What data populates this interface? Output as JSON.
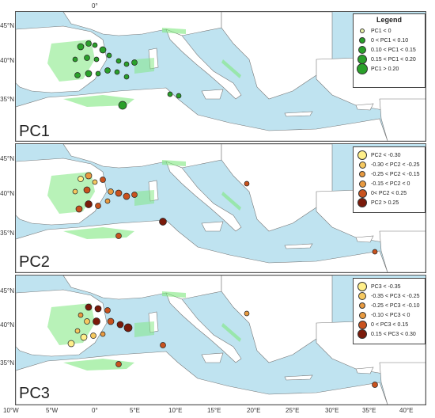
{
  "panels": [
    {
      "label": "PC1",
      "legend": {
        "title": "Legend",
        "entries": [
          {
            "text": "PC1 < 0",
            "color": "#e8f0a8",
            "size": 4
          },
          {
            "text": "0 < PC1 < 0.10",
            "color": "#2aa02a",
            "size": 6
          },
          {
            "text": "0.10 < PC1 < 0.15",
            "color": "#2aa02a",
            "size": 8
          },
          {
            "text": "0.15 < PC1 < 0.20",
            "color": "#2aa02a",
            "size": 10
          },
          {
            "text": "PC1 > 0.20",
            "color": "#2aa02a",
            "size": 12
          }
        ]
      }
    },
    {
      "label": "PC2",
      "legend": {
        "title": "",
        "entries": [
          {
            "text": "PC2 < -0.30",
            "color": "#ffef8a",
            "size": 10
          },
          {
            "text": "-0.30 < PC2 < -0.25",
            "color": "#f5c860",
            "size": 7
          },
          {
            "text": "-0.25 < PC2 < -0.15",
            "color": "#e89a40",
            "size": 6
          },
          {
            "text": "-0.15 < PC2 < 0",
            "color": "#e89a40",
            "size": 7
          },
          {
            "text": "0< PC2 < 0.25",
            "color": "#c8521e",
            "size": 9
          },
          {
            "text": "PC2 > 0.25",
            "color": "#7a1a0a",
            "size": 10
          }
        ]
      }
    },
    {
      "label": "PC3",
      "legend": {
        "title": "",
        "entries": [
          {
            "text": "PC3 < -0.35",
            "color": "#ffef8a",
            "size": 10
          },
          {
            "text": "-0.35 < PC3 < -0.25",
            "color": "#f5c860",
            "size": 8
          },
          {
            "text": "-0.25 < PC3 < -0.10",
            "color": "#e89a40",
            "size": 6
          },
          {
            "text": "-0.10 < PC3 < 0",
            "color": "#e89a40",
            "size": 7
          },
          {
            "text": "0 < PC3 < 0.15",
            "color": "#c8521e",
            "size": 9
          },
          {
            "text": "0.15 < PC3 < 0.30",
            "color": "#7a1a0a",
            "size": 10
          }
        ]
      }
    }
  ],
  "axes": {
    "lat_labels": [
      "45°N",
      "40°N",
      "35°N"
    ],
    "lon_labels": [
      "10°W",
      "5°W",
      "0°",
      "5°E",
      "10°E",
      "15°E",
      "20°E",
      "25°E",
      "30°E",
      "35°E",
      "40°E"
    ],
    "top_lon_label": "0°"
  },
  "colors": {
    "sea": "#bfe3f0",
    "land": "#ffffff",
    "habitat": "#7ee87e",
    "border": "#777777"
  }
}
